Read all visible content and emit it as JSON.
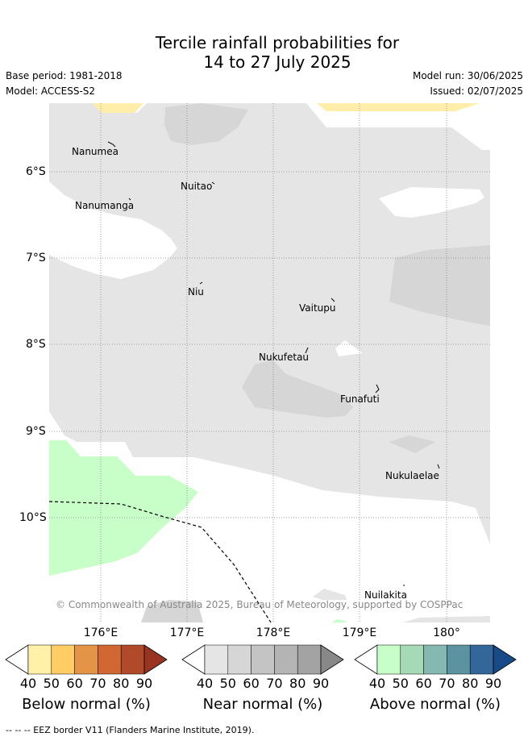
{
  "title_line1": "Tercile rainfall probabilities for",
  "title_line2": "14 to 27 July 2025",
  "base_period": "Base period: 1981-2018",
  "model": "Model: ACCESS-S2",
  "model_run": "Model run: 30/06/2025",
  "issued": "Issued: 02/07/2025",
  "lat_labels": [
    "6°S",
    "7°S",
    "8°S",
    "9°S",
    "10°S"
  ],
  "lon_labels": [
    "176°E",
    "177°E",
    "178°E",
    "179°E",
    "180°"
  ],
  "places": [
    "Nanumea",
    "Nuitao",
    "Nanumanga",
    "Niu",
    "Vaitupu",
    "Nukufetau",
    "Funafuti",
    "Nukulaelae",
    "Nuilakita"
  ],
  "copyright": "© Commonwealth of Australia 2025, Bureau of Meteorology, supported by COSPPac",
  "colorbars": [
    {
      "name": "Below normal (%)",
      "ticks": [
        "40",
        "50",
        "60",
        "70",
        "80",
        "90"
      ],
      "colors": [
        "#fff2a8",
        "#ffcc66",
        "#e39446",
        "#d16732",
        "#b04a2a",
        "#993322"
      ]
    },
    {
      "name": "Near normal (%)",
      "ticks": [
        "40",
        "50",
        "60",
        "70",
        "80",
        "90"
      ],
      "colors": [
        "#e5e5e5",
        "#d6d6d6",
        "#c4c4c4",
        "#b4b4b4",
        "#a3a3a3",
        "#888888"
      ]
    },
    {
      "name": "Above normal (%)",
      "ticks": [
        "40",
        "50",
        "60",
        "70",
        "80",
        "90"
      ],
      "colors": [
        "#c8ffc8",
        "#a6d9b5",
        "#85b8b0",
        "#5b93a0",
        "#336699",
        "#184a88"
      ]
    }
  ],
  "footer": "-- -- -- EEZ border V11 (Flanders Marine Institute, 2019).",
  "colors": {
    "near_normal_40": "#e5e5e5",
    "near_normal_50": "#d6d6d6",
    "above_normal_40": "#c8ffc8",
    "below_normal_40": "#ffeeaa"
  }
}
